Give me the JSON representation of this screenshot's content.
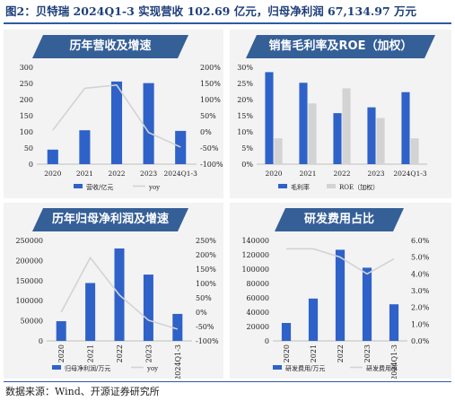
{
  "figure_title": "图2：贝特瑞 2024Q1-3 实现营收 102.69 亿元，归母净利润 67,134.97 万元",
  "source": "数据来源：Wind、开源证券研究所",
  "colors": {
    "bar": "#2f62c8",
    "bar2": "#d3d3d3",
    "line": "#d3d3d3",
    "title_bg": "#355f97",
    "panel_bg": "#f3f3f3"
  },
  "chart_data": [
    {
      "type": "bar",
      "title": "历年营收及增速",
      "categories": [
        "2020",
        "2021",
        "2022",
        "2023",
        "2024Q1-3"
      ],
      "series": [
        {
          "name": "营收/亿元",
          "type": "bar",
          "axis": "left",
          "values": [
            45,
            105,
            256,
            251,
            103
          ]
        },
        {
          "name": "yoy",
          "type": "line",
          "axis": "right",
          "values": [
            5,
            135,
            145,
            -2,
            -47
          ]
        }
      ],
      "ylim": [
        0,
        300
      ],
      "yticks": [
        "0",
        "50",
        "100",
        "150",
        "200",
        "250",
        "300"
      ],
      "y2lim": [
        -100,
        200
      ],
      "y2ticks": [
        "-100%",
        "-50%",
        "0%",
        "50%",
        "100%",
        "150%",
        "200%"
      ],
      "legend": "bottom",
      "rotate_xlabels": false
    },
    {
      "type": "bar",
      "title": "销售毛利率及ROE（加权）",
      "categories": [
        "2020",
        "2021",
        "2022",
        "2023",
        "2024Q1-3"
      ],
      "series": [
        {
          "name": "毛利率",
          "type": "bar",
          "values": [
            28.5,
            25.2,
            15.8,
            17.6,
            22.3
          ]
        },
        {
          "name": "ROE（加权）",
          "type": "bar",
          "values": [
            8.0,
            18.8,
            23.5,
            14.3,
            8.0
          ]
        }
      ],
      "ylim": [
        0,
        30
      ],
      "yticks": [
        "0%",
        "5%",
        "10%",
        "15%",
        "20%",
        "25%",
        "30%"
      ],
      "legend": "bottom",
      "rotate_xlabels": false
    },
    {
      "type": "bar",
      "title": "历年归母净利润及增速",
      "categories": [
        "2020",
        "2021",
        "2022",
        "2023",
        "2024Q1-3"
      ],
      "series": [
        {
          "name": "归母净利润/万元",
          "type": "bar",
          "axis": "left",
          "values": [
            49000,
            144000,
            230000,
            165000,
            67135
          ]
        },
        {
          "name": "yoy",
          "type": "line",
          "axis": "right",
          "values": [
            0,
            190,
            60,
            -28,
            -59
          ]
        }
      ],
      "ylim": [
        0,
        250000
      ],
      "yticks": [
        "0",
        "50000",
        "100000",
        "150000",
        "200000",
        "250000"
      ],
      "y2lim": [
        -100,
        250
      ],
      "y2ticks": [
        "-100%",
        "-50%",
        "0%",
        "50%",
        "100%",
        "150%",
        "200%",
        "250%"
      ],
      "legend": "bottom",
      "rotate_xlabels": true
    },
    {
      "type": "bar",
      "title": "研发费用占比",
      "categories": [
        "2020",
        "2021",
        "2022",
        "2023",
        "2024Q1-3"
      ],
      "series": [
        {
          "name": "研发费用/万元",
          "type": "bar",
          "axis": "left",
          "values": [
            25000,
            59000,
            127000,
            102000,
            51000
          ]
        },
        {
          "name": "研发费用率",
          "type": "line",
          "axis": "right",
          "values": [
            5.5,
            5.5,
            5.0,
            4.0,
            4.9
          ]
        }
      ],
      "ylim": [
        0,
        140000
      ],
      "yticks": [
        "0",
        "20000",
        "40000",
        "60000",
        "80000",
        "100000",
        "120000",
        "140000"
      ],
      "y2lim": [
        0,
        6
      ],
      "y2ticks": [
        "0.0%",
        "1.0%",
        "2.0%",
        "3.0%",
        "4.0%",
        "5.0%",
        "6.0%"
      ],
      "legend": "bottom",
      "rotate_xlabels": true
    }
  ]
}
